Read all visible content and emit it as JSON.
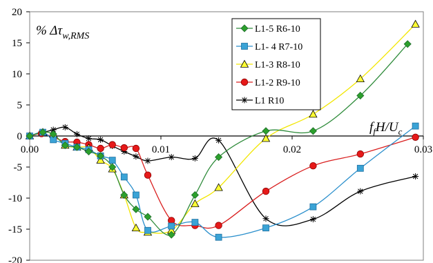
{
  "chart_data": {
    "type": "line",
    "ylabel": "% Δτ",
    "ylabel_sub": "w,RMS",
    "xlabel_parts": [
      "f",
      "f",
      "H/U",
      "c"
    ],
    "xlim": [
      0,
      0.03
    ],
    "ylim": [
      -20,
      20
    ],
    "x_ticks": [
      0,
      0.01,
      0.02,
      0.03
    ],
    "x_tick_labels": [
      "0.00",
      "0.01",
      "0.02",
      "0.03"
    ],
    "y_ticks": [
      -20,
      -15,
      -10,
      -5,
      0,
      5,
      10,
      15,
      20
    ],
    "y_tick_labels": [
      "-20",
      "-15",
      "-10",
      "-5",
      "0",
      "5",
      "10",
      "15",
      "20"
    ],
    "grid": false,
    "legend_position": "top-right",
    "series": [
      {
        "name": "L1-5   R6-10",
        "color": "#2ca02c",
        "line_color": "#2e8b3a",
        "marker": "diamond",
        "x": [
          0.0,
          0.001,
          0.0018,
          0.0027,
          0.0036,
          0.0045,
          0.0054,
          0.0063,
          0.0072,
          0.0081,
          0.009,
          0.0108,
          0.0126,
          0.0144,
          0.018,
          0.0216,
          0.0252,
          0.0288
        ],
        "y": [
          0.0,
          0.6,
          0.3,
          -1.5,
          -1.8,
          -2.5,
          -3.2,
          -5.0,
          -9.5,
          -11.8,
          -13.0,
          -15.9,
          -9.5,
          -3.4,
          0.8,
          0.8,
          6.5,
          14.8
        ]
      },
      {
        "name": "L1- 4  R7-10",
        "color": "#3aa3d6",
        "line_color": "#2a8fcc",
        "marker": "square",
        "x": [
          0.0,
          0.001,
          0.0018,
          0.0027,
          0.0036,
          0.0045,
          0.0054,
          0.0063,
          0.0072,
          0.0081,
          0.009,
          0.0108,
          0.0126,
          0.0144,
          0.018,
          0.0216,
          0.0252,
          0.0294
        ],
        "y": [
          0.0,
          0.6,
          -0.6,
          -1.2,
          -1.8,
          -2.2,
          -3.2,
          -3.9,
          -6.6,
          -9.5,
          -15.2,
          -14.5,
          -13.9,
          -16.3,
          -14.8,
          -11.4,
          -5.2,
          1.6
        ]
      },
      {
        "name": "L1-3   R8-10",
        "color": "#ffff33",
        "line_color": "#f2e600",
        "marker": "triangle",
        "x": [
          0.0,
          0.001,
          0.0018,
          0.0027,
          0.0036,
          0.0045,
          0.0054,
          0.0063,
          0.0072,
          0.0081,
          0.009,
          0.0108,
          0.0126,
          0.0144,
          0.018,
          0.0216,
          0.0252,
          0.0294
        ],
        "y": [
          0.0,
          0.6,
          0.3,
          -1.5,
          -1.8,
          -1.9,
          -3.9,
          -5.3,
          -9.5,
          -14.8,
          -15.5,
          -15.2,
          -10.9,
          -8.3,
          -0.4,
          3.5,
          9.2,
          18.0
        ]
      },
      {
        "name": "L1-2   R9-10",
        "color": "#e61919",
        "line_color": "#d91e1e",
        "marker": "circle",
        "x": [
          0.0,
          0.0009,
          0.0018,
          0.0027,
          0.0036,
          0.0045,
          0.0054,
          0.0063,
          0.0072,
          0.0081,
          0.009,
          0.0108,
          0.0126,
          0.0144,
          0.018,
          0.0216,
          0.0252,
          0.0294
        ],
        "y": [
          0.0,
          0.4,
          -0.2,
          -0.9,
          -1.0,
          -1.4,
          -2.0,
          -1.4,
          -1.9,
          -2.0,
          -6.3,
          -13.6,
          -14.4,
          -14.4,
          -8.9,
          -4.8,
          -2.9,
          -0.2
        ]
      },
      {
        "name": "L1       R10",
        "color": "#000000",
        "line_color": "#000000",
        "marker": "star",
        "x": [
          0.0,
          0.0009,
          0.0018,
          0.0027,
          0.0036,
          0.0045,
          0.0054,
          0.0063,
          0.0072,
          0.0081,
          0.009,
          0.0108,
          0.0126,
          0.0144,
          0.018,
          0.0216,
          0.0252,
          0.0294
        ],
        "y": [
          0.0,
          0.5,
          1.0,
          1.4,
          0.3,
          -0.4,
          -0.6,
          -1.6,
          -2.5,
          -3.3,
          -4.0,
          -3.4,
          -3.6,
          -0.7,
          -13.3,
          -13.4,
          -8.9,
          -6.5
        ]
      }
    ]
  }
}
